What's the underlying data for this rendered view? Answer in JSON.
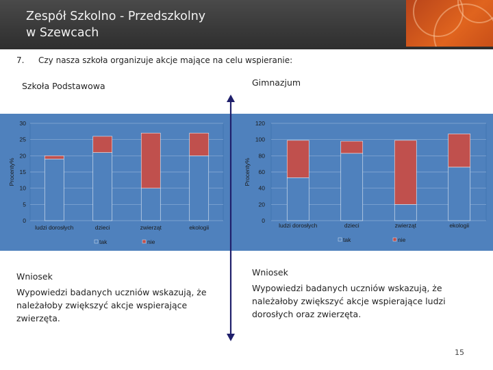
{
  "header": {
    "title_line1": "Zespół Szkolno - Przedszkolny",
    "title_line2": "w Szewcach"
  },
  "question": {
    "number": "7.",
    "text": "Czy nasza szkoła organizuje akcje mające na celu wspieranie:"
  },
  "colors": {
    "header_bg": "#3a3a3a",
    "chart_bg": "#4f81bd",
    "series_tak": "#4f81bd",
    "series_nie": "#c0504d",
    "accent": "#e0641e",
    "arrow": "#1f1f6b"
  },
  "chart_data": [
    {
      "type": "bar",
      "stacked": true,
      "title": "Szkoła  Podstawowa",
      "ylabel": "Procenty%",
      "ylim": [
        0,
        30
      ],
      "yticks": [
        "0",
        "5",
        "10",
        "15",
        "20",
        "25",
        "30"
      ],
      "categories": [
        "ludzi dorosłych",
        "dzieci",
        "zwierząt",
        "ekologii"
      ],
      "series": [
        {
          "name": "tak",
          "values": [
            19,
            21,
            10,
            20
          ]
        },
        {
          "name": "nie",
          "values": [
            1,
            5,
            17,
            7
          ]
        }
      ]
    },
    {
      "type": "bar",
      "stacked": true,
      "title": "Gimnazjum",
      "ylabel": "Procenty%",
      "ylim": [
        0,
        120
      ],
      "yticks": [
        "0",
        "20",
        "40",
        "60",
        "80",
        "100",
        "120"
      ],
      "categories": [
        "ludzi dorosłych",
        "dzieci",
        "zwierząt",
        "ekologii"
      ],
      "series": [
        {
          "name": "tak",
          "values": [
            53,
            83,
            20,
            66
          ]
        },
        {
          "name": "nie",
          "values": [
            46,
            15,
            79,
            41
          ]
        }
      ]
    }
  ],
  "conclusions": {
    "left": {
      "heading": "Wniosek",
      "text": "Wypowiedzi badanych uczniów wskazują, że należałoby zwiększyć akcje wspierające zwierzęta."
    },
    "right": {
      "heading": "Wniosek",
      "text": "Wypowiedzi badanych uczniów wskazują, że należałoby zwiększyć akcje wspierające  ludzi dorosłych oraz zwierzęta."
    }
  },
  "page_number": "15"
}
